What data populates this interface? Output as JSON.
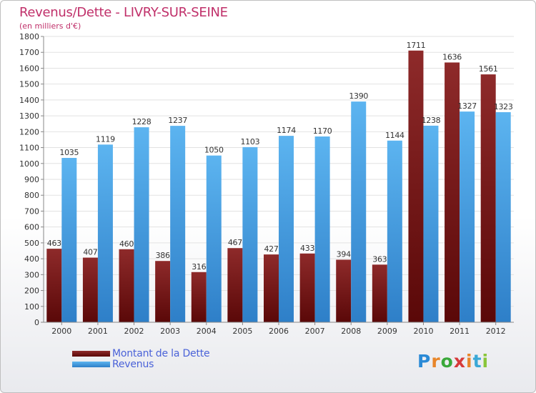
{
  "header": {
    "title": "Revenus/Dette - LIVRY-SUR-SEINE",
    "subtitle": "(en milliers d'€)"
  },
  "legend": {
    "items": [
      {
        "label": "Montant de la Dette",
        "color": "#7a1a1a"
      },
      {
        "label": "Revenus",
        "color": "#4ea6e6"
      }
    ]
  },
  "logo": {
    "text": "Proxiti",
    "letters": [
      "P",
      "r",
      "o",
      "x",
      "i",
      "t",
      "i"
    ],
    "colors": [
      "#2a8ad6",
      "#e8862a",
      "#3aa83a",
      "#d63a3a",
      "#e8862a",
      "#3aa8d6",
      "#8ac63a"
    ]
  },
  "chart_data": {
    "type": "bar",
    "title": "Revenus/Dette - LIVRY-SUR-SEINE",
    "subtitle": "(en milliers d'€)",
    "categories": [
      "2000",
      "2001",
      "2002",
      "2003",
      "2004",
      "2005",
      "2006",
      "2007",
      "2008",
      "2009",
      "2010",
      "2011",
      "2012"
    ],
    "series": [
      {
        "name": "Montant de la Dette",
        "color": "#7a1a1a",
        "values": [
          463,
          407,
          460,
          386,
          316,
          467,
          427,
          433,
          394,
          363,
          1711,
          1636,
          1561
        ]
      },
      {
        "name": "Revenus",
        "color": "#4ea6e6",
        "values": [
          1035,
          1119,
          1228,
          1237,
          1050,
          1103,
          1174,
          1170,
          1390,
          1144,
          1238,
          1327,
          1323
        ]
      }
    ],
    "ylim": [
      0,
      1800
    ],
    "yticks": [
      0,
      100,
      200,
      300,
      400,
      500,
      600,
      700,
      800,
      900,
      1000,
      1100,
      1200,
      1300,
      1400,
      1500,
      1600,
      1700,
      1800
    ],
    "grid": true,
    "legend_position": "bottom-left"
  }
}
